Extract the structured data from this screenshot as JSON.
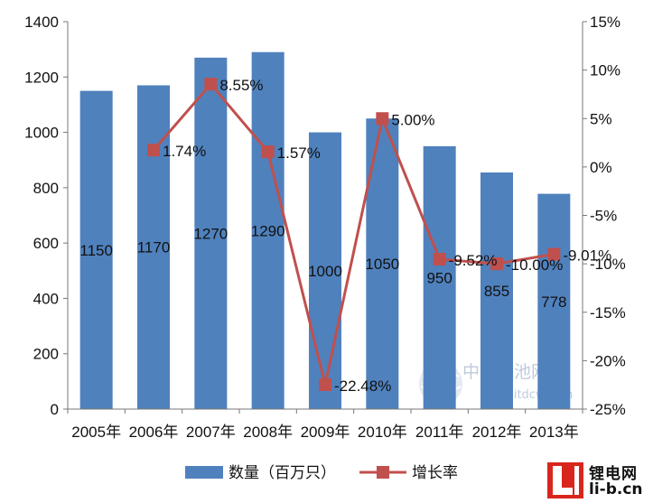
{
  "chart_data": {
    "type": "bar",
    "categories": [
      "2005年",
      "2006年",
      "2007年",
      "2008年",
      "2009年",
      "2010年",
      "2011年",
      "2012年",
      "2013年"
    ],
    "series": [
      {
        "name": "数量（百万只）",
        "type": "bar",
        "axis": "left",
        "values": [
          1150,
          1170,
          1270,
          1290,
          1000,
          1050,
          950,
          855,
          778
        ],
        "labels": [
          "1150",
          "1170",
          "1270",
          "1290",
          "1000",
          "1050",
          "950",
          "855",
          "778"
        ]
      },
      {
        "name": "增长率",
        "type": "line",
        "axis": "right",
        "values": [
          null,
          1.74,
          8.55,
          1.57,
          -22.48,
          5.0,
          -9.52,
          -10.0,
          -9.01
        ],
        "labels": [
          null,
          "1.74%",
          "8.55%",
          "1.57%",
          "-22.48%",
          "5.00%",
          "-9.52%",
          "-10.00%",
          "-9.01%"
        ]
      }
    ],
    "y_left": {
      "min": 0,
      "max": 1400,
      "ticks": [
        "0",
        "200",
        "400",
        "600",
        "800",
        "1000",
        "1200",
        "1400"
      ]
    },
    "y_right": {
      "min": -25,
      "max": 15,
      "ticks": [
        "15%",
        "10%",
        "5%",
        "0%",
        "-5%",
        "-10%",
        "-15%",
        "-20%",
        "-25%"
      ]
    },
    "legend_position": "bottom",
    "grid": false,
    "colors": {
      "bar": "#4f81bd",
      "line": "#c0504d"
    }
  },
  "watermark": "中国电池网 www.itdcw.com",
  "logo": {
    "cn": "锂电网",
    "en": "li-b.cn"
  }
}
